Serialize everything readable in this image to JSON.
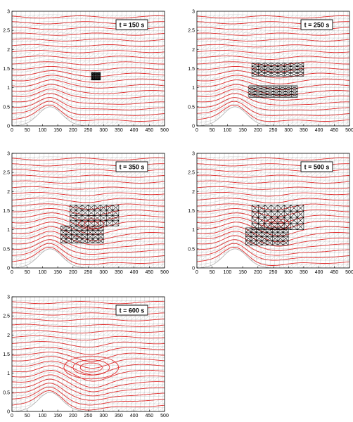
{
  "figure": {
    "panels": [
      {
        "label": "t = 150 s",
        "stage": 1
      },
      {
        "label": "t = 250 s",
        "stage": 2
      },
      {
        "label": "t = 350 s",
        "stage": 3
      },
      {
        "label": "t = 500 s",
        "stage": 4
      },
      {
        "label": "t = 600 s",
        "stage": 5
      }
    ],
    "x_ticks": [
      "0",
      "50",
      "100",
      "150",
      "200",
      "250",
      "300",
      "350",
      "400",
      "450",
      "500"
    ],
    "y_ticks": [
      "0",
      "0.5",
      "1",
      "1.5",
      "2",
      "2.5",
      "3"
    ],
    "xlim": [
      0,
      500
    ],
    "ylim": [
      0,
      3
    ],
    "colors": {
      "mesh": "#b4b4b4",
      "contour": "#e03030",
      "refined_mesh": "#000000",
      "axes": "#000000"
    }
  }
}
